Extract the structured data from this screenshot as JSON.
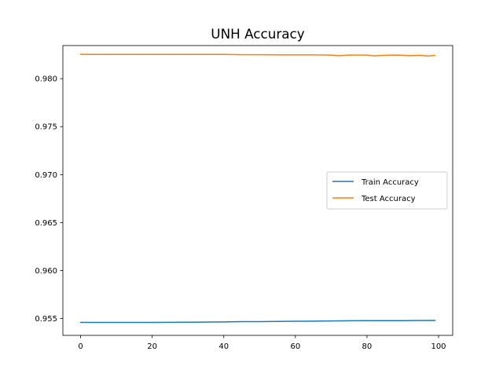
{
  "chart_data": {
    "type": "line",
    "title": "UNH Accuracy",
    "xlabel": "",
    "ylabel": "",
    "xlim": [
      -4.95,
      103.95
    ],
    "ylim": [
      0.95325,
      0.98345
    ],
    "xticks": [
      0,
      20,
      40,
      60,
      80,
      100
    ],
    "xtick_labels": [
      "0",
      "20",
      "40",
      "60",
      "80",
      "100"
    ],
    "yticks": [
      0.955,
      0.96,
      0.965,
      0.97,
      0.975,
      0.98
    ],
    "ytick_labels": [
      "0.955",
      "0.960",
      "0.965",
      "0.970",
      "0.975",
      "0.980"
    ],
    "grid": false,
    "legend_position": "center-right",
    "series": [
      {
        "name": "Train Accuracy",
        "color": "#1f77b4",
        "x": [
          0,
          10,
          20,
          30,
          40,
          45,
          50,
          55,
          60,
          65,
          70,
          75,
          80,
          85,
          90,
          95,
          99
        ],
        "y": [
          0.9546,
          0.9546,
          0.9546,
          0.95462,
          0.95465,
          0.95468,
          0.95468,
          0.9547,
          0.95472,
          0.95473,
          0.95475,
          0.95477,
          0.95478,
          0.95478,
          0.95478,
          0.9548,
          0.9548
        ]
      },
      {
        "name": "Test Accuracy",
        "color": "#ff7f0e",
        "x": [
          0,
          10,
          20,
          30,
          40,
          45,
          50,
          55,
          60,
          65,
          70,
          72,
          75,
          78,
          80,
          82,
          85,
          88,
          90,
          92,
          95,
          97,
          99
        ],
        "y": [
          0.98253,
          0.98253,
          0.98253,
          0.98253,
          0.98253,
          0.9825,
          0.9825,
          0.98248,
          0.98248,
          0.98248,
          0.98246,
          0.9824,
          0.98246,
          0.98246,
          0.98246,
          0.98238,
          0.98244,
          0.98246,
          0.98244,
          0.9824,
          0.98244,
          0.98236,
          0.98242
        ]
      }
    ]
  }
}
